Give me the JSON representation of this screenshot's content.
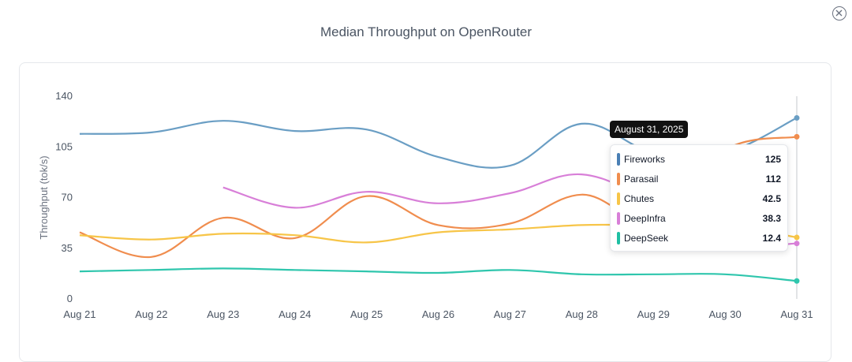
{
  "modal": {
    "title": "Median Throughput on OpenRouter"
  },
  "chart_data": {
    "type": "line",
    "title": "Median Throughput on OpenRouter",
    "xlabel": "",
    "ylabel": "Throughput (tok/s)",
    "ylim": [
      0,
      140
    ],
    "yticks": [
      0,
      35,
      70,
      105,
      140
    ],
    "categories": [
      "Aug 21",
      "Aug 22",
      "Aug 23",
      "Aug 24",
      "Aug 25",
      "Aug 26",
      "Aug 27",
      "Aug 28",
      "Aug 29",
      "Aug 30",
      "Aug 31"
    ],
    "grid": false,
    "series": [
      {
        "name": "Fireworks",
        "color": "#6a9ec4",
        "values": [
          114,
          115,
          123,
          116,
          117,
          98,
          92,
          121,
          101,
          101,
          125
        ]
      },
      {
        "name": "Parasail",
        "color": "#f08d4e",
        "values": [
          46,
          29,
          56,
          42,
          71,
          51,
          52,
          72,
          55,
          103,
          112
        ]
      },
      {
        "name": "Chutes",
        "color": "#f7c548",
        "values": [
          44,
          41,
          45,
          44,
          39,
          46,
          48,
          51,
          51,
          51,
          42.5
        ]
      },
      {
        "name": "DeepInfra",
        "color": "#d87fd8",
        "values": [
          null,
          null,
          77,
          63,
          74,
          66,
          73,
          86,
          66,
          38,
          38.3
        ]
      },
      {
        "name": "DeepSeek",
        "color": "#2fc6ad",
        "values": [
          19,
          20,
          21,
          20,
          19,
          18,
          20,
          17,
          17,
          17,
          12.4
        ]
      }
    ],
    "tooltip": {
      "date": "August 31, 2025",
      "rows": [
        {
          "name": "Fireworks",
          "value": "125",
          "color": "#4a7fb5"
        },
        {
          "name": "Parasail",
          "value": "112",
          "color": "#f08d4e"
        },
        {
          "name": "Chutes",
          "value": "42.5",
          "color": "#f7c548"
        },
        {
          "name": "DeepInfra",
          "value": "38.3",
          "color": "#d87fd8"
        },
        {
          "name": "DeepSeek",
          "value": "12.4",
          "color": "#1fbfa3"
        }
      ]
    }
  }
}
